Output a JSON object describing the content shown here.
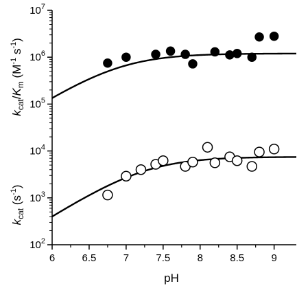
{
  "chart_data": {
    "type": "scatter",
    "x_axis": {
      "label": "pH",
      "range": [
        6,
        9.3
      ],
      "ticks": [
        6,
        6.5,
        7,
        7.5,
        8,
        8.5,
        9
      ],
      "tick_labels": [
        "6",
        "6.5",
        "7",
        "7.5",
        "8",
        "8.5",
        "9"
      ]
    },
    "y_axis": {
      "scale": "log",
      "range": [
        100,
        10000000
      ],
      "ticks": [
        100,
        1000,
        10000,
        100000,
        1000000,
        10000000
      ],
      "tick_labels": [
        {
          "base": "10",
          "exp": "2"
        },
        {
          "base": "10",
          "exp": "3"
        },
        {
          "base": "10",
          "exp": "4"
        },
        {
          "base": "10",
          "exp": "5"
        },
        {
          "base": "10",
          "exp": "6"
        },
        {
          "base": "10",
          "exp": "7"
        }
      ]
    },
    "y_labels": {
      "kcat_over_km": {
        "k": "k",
        "sub1": "cat",
        "slash": "/",
        "K": "K",
        "sub2": "m",
        "unit_open": " (M",
        "unit_exp1": "-1",
        "unit_mid": " s",
        "unit_exp2": "-1",
        "unit_close": ")"
      },
      "kcat": {
        "k": "k",
        "sub": "cat",
        "unit_open": " (s",
        "unit_exp": "-1",
        "unit_close": ")"
      }
    },
    "grid": false,
    "series": [
      {
        "marker": "filled-circle",
        "points": [
          {
            "x": 6.75,
            "y": 750000
          },
          {
            "x": 7.0,
            "y": 1000000
          },
          {
            "x": 7.4,
            "y": 1150000
          },
          {
            "x": 7.6,
            "y": 1350000
          },
          {
            "x": 7.8,
            "y": 1150000
          },
          {
            "x": 7.9,
            "y": 720000
          },
          {
            "x": 8.2,
            "y": 1300000
          },
          {
            "x": 8.4,
            "y": 1120000
          },
          {
            "x": 8.5,
            "y": 1200000
          },
          {
            "x": 8.7,
            "y": 1000000
          },
          {
            "x": 8.8,
            "y": 2700000
          },
          {
            "x": 9.0,
            "y": 2800000
          }
        ],
        "fit": {
          "pKa": 6.9,
          "limit": 1200000
        }
      },
      {
        "marker": "open-circle",
        "points": [
          {
            "x": 6.75,
            "y": 1150
          },
          {
            "x": 7.0,
            "y": 2900
          },
          {
            "x": 7.2,
            "y": 4000
          },
          {
            "x": 7.4,
            "y": 5200
          },
          {
            "x": 7.5,
            "y": 6200
          },
          {
            "x": 7.8,
            "y": 4700
          },
          {
            "x": 7.9,
            "y": 5800
          },
          {
            "x": 8.1,
            "y": 12000
          },
          {
            "x": 8.2,
            "y": 5600
          },
          {
            "x": 8.4,
            "y": 7500
          },
          {
            "x": 8.5,
            "y": 6200
          },
          {
            "x": 8.7,
            "y": 4700
          },
          {
            "x": 8.8,
            "y": 9500
          },
          {
            "x": 9.0,
            "y": 11000
          }
        ],
        "fit": {
          "pKa": 7.25,
          "limit": 7500
        }
      }
    ]
  }
}
